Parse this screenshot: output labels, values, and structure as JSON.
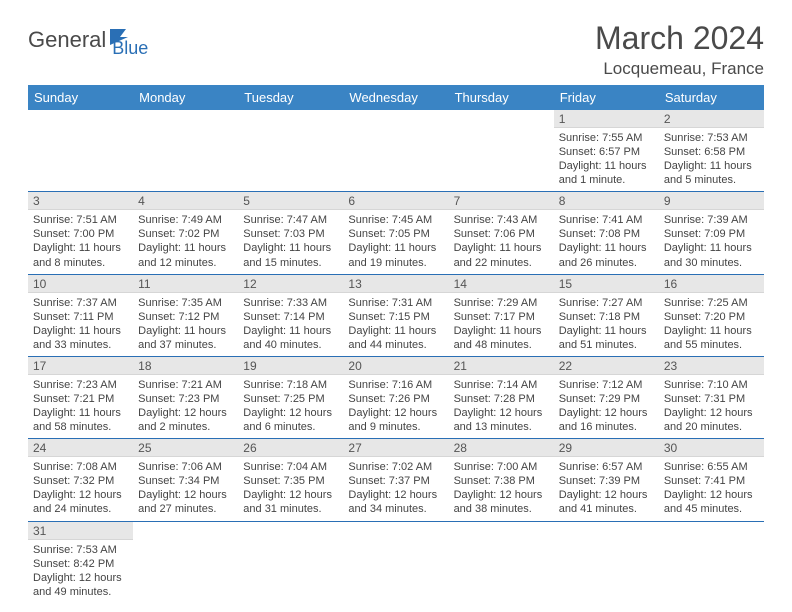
{
  "logo": {
    "part1": "General",
    "part2": "Blue"
  },
  "title": "March 2024",
  "location": "Locquemeau, France",
  "colors": {
    "header_bg": "#3a84c4",
    "header_fg": "#ffffff",
    "rule": "#2a6fb5",
    "daynum_bg": "#e7e7e7",
    "text": "#444444",
    "logo_gray": "#4a4a4a",
    "logo_blue": "#2a6fb5"
  },
  "dow": [
    "Sunday",
    "Monday",
    "Tuesday",
    "Wednesday",
    "Thursday",
    "Friday",
    "Saturday"
  ],
  "weeks": [
    [
      null,
      null,
      null,
      null,
      null,
      {
        "n": "1",
        "sunrise": "7:55 AM",
        "sunset": "6:57 PM",
        "daylight": "11 hours and 1 minute."
      },
      {
        "n": "2",
        "sunrise": "7:53 AM",
        "sunset": "6:58 PM",
        "daylight": "11 hours and 5 minutes."
      }
    ],
    [
      {
        "n": "3",
        "sunrise": "7:51 AM",
        "sunset": "7:00 PM",
        "daylight": "11 hours and 8 minutes."
      },
      {
        "n": "4",
        "sunrise": "7:49 AM",
        "sunset": "7:02 PM",
        "daylight": "11 hours and 12 minutes."
      },
      {
        "n": "5",
        "sunrise": "7:47 AM",
        "sunset": "7:03 PM",
        "daylight": "11 hours and 15 minutes."
      },
      {
        "n": "6",
        "sunrise": "7:45 AM",
        "sunset": "7:05 PM",
        "daylight": "11 hours and 19 minutes."
      },
      {
        "n": "7",
        "sunrise": "7:43 AM",
        "sunset": "7:06 PM",
        "daylight": "11 hours and 22 minutes."
      },
      {
        "n": "8",
        "sunrise": "7:41 AM",
        "sunset": "7:08 PM",
        "daylight": "11 hours and 26 minutes."
      },
      {
        "n": "9",
        "sunrise": "7:39 AM",
        "sunset": "7:09 PM",
        "daylight": "11 hours and 30 minutes."
      }
    ],
    [
      {
        "n": "10",
        "sunrise": "7:37 AM",
        "sunset": "7:11 PM",
        "daylight": "11 hours and 33 minutes."
      },
      {
        "n": "11",
        "sunrise": "7:35 AM",
        "sunset": "7:12 PM",
        "daylight": "11 hours and 37 minutes."
      },
      {
        "n": "12",
        "sunrise": "7:33 AM",
        "sunset": "7:14 PM",
        "daylight": "11 hours and 40 minutes."
      },
      {
        "n": "13",
        "sunrise": "7:31 AM",
        "sunset": "7:15 PM",
        "daylight": "11 hours and 44 minutes."
      },
      {
        "n": "14",
        "sunrise": "7:29 AM",
        "sunset": "7:17 PM",
        "daylight": "11 hours and 48 minutes."
      },
      {
        "n": "15",
        "sunrise": "7:27 AM",
        "sunset": "7:18 PM",
        "daylight": "11 hours and 51 minutes."
      },
      {
        "n": "16",
        "sunrise": "7:25 AM",
        "sunset": "7:20 PM",
        "daylight": "11 hours and 55 minutes."
      }
    ],
    [
      {
        "n": "17",
        "sunrise": "7:23 AM",
        "sunset": "7:21 PM",
        "daylight": "11 hours and 58 minutes."
      },
      {
        "n": "18",
        "sunrise": "7:21 AM",
        "sunset": "7:23 PM",
        "daylight": "12 hours and 2 minutes."
      },
      {
        "n": "19",
        "sunrise": "7:18 AM",
        "sunset": "7:25 PM",
        "daylight": "12 hours and 6 minutes."
      },
      {
        "n": "20",
        "sunrise": "7:16 AM",
        "sunset": "7:26 PM",
        "daylight": "12 hours and 9 minutes."
      },
      {
        "n": "21",
        "sunrise": "7:14 AM",
        "sunset": "7:28 PM",
        "daylight": "12 hours and 13 minutes."
      },
      {
        "n": "22",
        "sunrise": "7:12 AM",
        "sunset": "7:29 PM",
        "daylight": "12 hours and 16 minutes."
      },
      {
        "n": "23",
        "sunrise": "7:10 AM",
        "sunset": "7:31 PM",
        "daylight": "12 hours and 20 minutes."
      }
    ],
    [
      {
        "n": "24",
        "sunrise": "7:08 AM",
        "sunset": "7:32 PM",
        "daylight": "12 hours and 24 minutes."
      },
      {
        "n": "25",
        "sunrise": "7:06 AM",
        "sunset": "7:34 PM",
        "daylight": "12 hours and 27 minutes."
      },
      {
        "n": "26",
        "sunrise": "7:04 AM",
        "sunset": "7:35 PM",
        "daylight": "12 hours and 31 minutes."
      },
      {
        "n": "27",
        "sunrise": "7:02 AM",
        "sunset": "7:37 PM",
        "daylight": "12 hours and 34 minutes."
      },
      {
        "n": "28",
        "sunrise": "7:00 AM",
        "sunset": "7:38 PM",
        "daylight": "12 hours and 38 minutes."
      },
      {
        "n": "29",
        "sunrise": "6:57 AM",
        "sunset": "7:39 PM",
        "daylight": "12 hours and 41 minutes."
      },
      {
        "n": "30",
        "sunrise": "6:55 AM",
        "sunset": "7:41 PM",
        "daylight": "12 hours and 45 minutes."
      }
    ],
    [
      {
        "n": "31",
        "sunrise": "7:53 AM",
        "sunset": "8:42 PM",
        "daylight": "12 hours and 49 minutes."
      },
      null,
      null,
      null,
      null,
      null,
      null
    ]
  ],
  "labels": {
    "sunrise": "Sunrise: ",
    "sunset": "Sunset: ",
    "daylight": "Daylight: "
  }
}
